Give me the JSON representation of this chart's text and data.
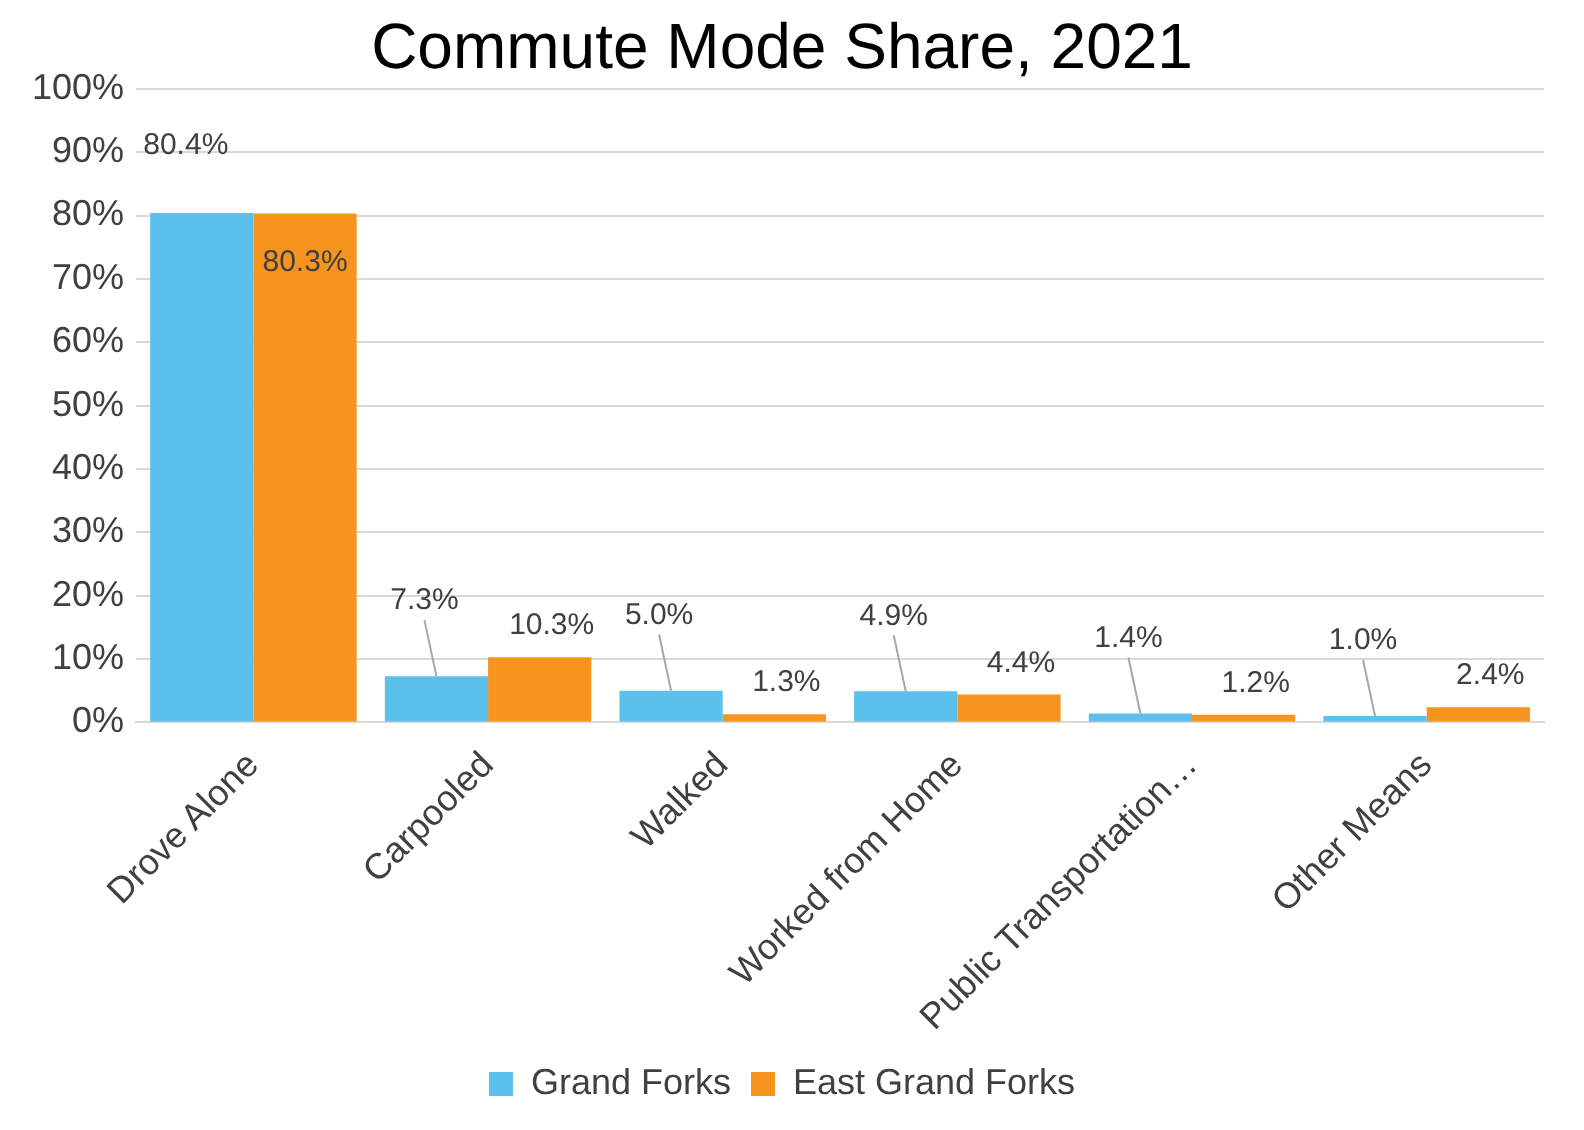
{
  "chart_data": {
    "type": "bar",
    "title": "Commute Mode Share, 2021",
    "categories": [
      "Drove Alone",
      "Carpooled",
      "Walked",
      "Worked from Home",
      "Public Transportation…",
      "Other Means"
    ],
    "series": [
      {
        "name": "Grand Forks",
        "color": "#5bc0eb",
        "values": [
          80.4,
          7.3,
          5.0,
          4.9,
          1.4,
          1.0
        ],
        "value_labels": [
          "80.4%",
          "7.3%",
          "5.0%",
          "4.9%",
          "1.4%",
          "1.0%"
        ]
      },
      {
        "name": "East Grand Forks",
        "color": "#f7941d",
        "values": [
          80.3,
          10.3,
          1.3,
          4.4,
          1.2,
          2.4
        ],
        "value_labels": [
          "80.3%",
          "10.3%",
          "1.3%",
          "4.4%",
          "1.2%",
          "2.4%"
        ]
      }
    ],
    "ylim": [
      0,
      100
    ],
    "yticks": [
      {
        "value": 0,
        "label": "0%"
      },
      {
        "value": 10,
        "label": "10%"
      },
      {
        "value": 20,
        "label": "20%"
      },
      {
        "value": 30,
        "label": "30%"
      },
      {
        "value": 40,
        "label": "40%"
      },
      {
        "value": 50,
        "label": "50%"
      },
      {
        "value": 60,
        "label": "60%"
      },
      {
        "value": 70,
        "label": "70%"
      },
      {
        "value": 80,
        "label": "80%"
      },
      {
        "value": 90,
        "label": "90%"
      },
      {
        "value": 100,
        "label": "100%"
      }
    ],
    "grid": "y",
    "legend": "bottom"
  }
}
